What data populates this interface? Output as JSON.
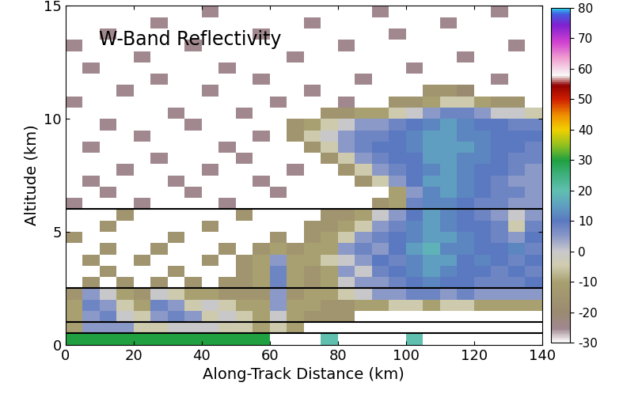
{
  "chart_data": {
    "type": "heatmap",
    "annotation": "W-Band Reflectivity",
    "x_label": "Along-Track Distance (km)",
    "y_label": "Altitude (km)",
    "xlim": [
      0,
      140
    ],
    "ylim": [
      0,
      15
    ],
    "xticks": [
      0,
      20,
      40,
      60,
      80,
      100,
      120,
      140
    ],
    "yticks": [
      0,
      5,
      10,
      15
    ],
    "reference_lines": [
      0.5,
      1,
      2.5,
      6
    ],
    "color_range": [
      -30,
      80
    ],
    "color_ticks": [
      -30,
      -20,
      -10,
      0,
      10,
      20,
      30,
      40,
      50,
      60,
      70,
      80
    ],
    "x_edges": [
      0,
      5,
      10,
      15,
      20,
      25,
      30,
      35,
      40,
      45,
      50,
      55,
      60,
      65,
      70,
      75,
      80,
      85,
      90,
      95,
      100,
      105,
      110,
      115,
      120,
      125,
      130,
      135,
      140
    ],
    "y_edges": [
      0,
      0.5,
      1,
      1.5,
      2,
      2.5,
      3,
      3.5,
      4,
      4.5,
      5,
      5.5,
      6,
      6.5,
      7,
      7.5,
      8,
      8.5,
      9,
      9.5,
      10,
      10.5,
      11,
      11.5,
      12,
      12.5,
      13,
      13.5,
      14,
      14.5,
      15
    ],
    "cells": [
      [
        30,
        30,
        30,
        30,
        30,
        30,
        30,
        30,
        30,
        30,
        30,
        30,
        null,
        null,
        null,
        20,
        null,
        null,
        null,
        null,
        20,
        null,
        null,
        null,
        null,
        null,
        null,
        null
      ],
      [
        -10,
        5,
        5,
        5,
        -5,
        -5,
        0,
        0,
        0,
        -5,
        -5,
        -10,
        -5,
        -10,
        null,
        null,
        null,
        null,
        null,
        null,
        null,
        null,
        null,
        null,
        null,
        null,
        null,
        null
      ],
      [
        -10,
        5,
        8,
        0,
        -5,
        5,
        8,
        5,
        -5,
        0,
        -5,
        -10,
        0,
        -10,
        -15,
        -15,
        -15,
        null,
        null,
        null,
        null,
        null,
        null,
        null,
        null,
        null,
        null,
        null
      ],
      [
        -10,
        8,
        5,
        -5,
        -10,
        8,
        5,
        -5,
        0,
        -5,
        -10,
        -10,
        5,
        -10,
        -10,
        -15,
        -15,
        -10,
        -10,
        -5,
        -5,
        -10,
        -5,
        -5,
        -10,
        -10,
        -10,
        -10
      ],
      [
        -15,
        5,
        0,
        -10,
        -15,
        0,
        -5,
        -10,
        -10,
        -15,
        -15,
        -15,
        5,
        -15,
        -10,
        -10,
        -5,
        0,
        5,
        5,
        8,
        8,
        5,
        8,
        5,
        5,
        5,
        5
      ],
      [
        null,
        -15,
        null,
        -15,
        null,
        -15,
        null,
        -15,
        null,
        -15,
        -15,
        -10,
        8,
        -10,
        -15,
        -10,
        0,
        5,
        5,
        8,
        10,
        12,
        10,
        10,
        8,
        8,
        8,
        10
      ],
      [
        null,
        null,
        -15,
        null,
        null,
        null,
        -15,
        null,
        null,
        null,
        -15,
        -10,
        8,
        -10,
        -15,
        -10,
        5,
        0,
        8,
        10,
        12,
        15,
        12,
        10,
        10,
        8,
        10,
        8
      ],
      [
        null,
        -15,
        null,
        null,
        -15,
        null,
        null,
        null,
        -15,
        null,
        -15,
        -10,
        5,
        -10,
        -10,
        -5,
        0,
        5,
        10,
        8,
        12,
        15,
        15,
        10,
        12,
        10,
        8,
        10
      ],
      [
        null,
        null,
        -15,
        null,
        null,
        -15,
        null,
        null,
        null,
        -15,
        null,
        -15,
        -10,
        -15,
        -10,
        -10,
        5,
        8,
        5,
        10,
        15,
        18,
        12,
        12,
        10,
        10,
        12,
        8
      ],
      [
        -15,
        null,
        null,
        null,
        null,
        null,
        -15,
        null,
        null,
        null,
        null,
        null,
        -15,
        null,
        -15,
        -10,
        -5,
        5,
        8,
        10,
        12,
        15,
        15,
        12,
        10,
        8,
        5,
        10
      ],
      [
        null,
        null,
        -15,
        null,
        null,
        null,
        null,
        null,
        -15,
        null,
        null,
        null,
        null,
        null,
        -15,
        -15,
        -10,
        -5,
        5,
        8,
        12,
        15,
        12,
        10,
        10,
        8,
        -5,
        8
      ],
      [
        null,
        null,
        null,
        -15,
        null,
        null,
        null,
        null,
        null,
        null,
        -15,
        null,
        null,
        null,
        null,
        -15,
        -15,
        -10,
        0,
        5,
        10,
        15,
        12,
        10,
        8,
        5,
        0,
        5
      ],
      [
        -25,
        null,
        null,
        null,
        -25,
        null,
        null,
        null,
        null,
        -25,
        null,
        null,
        null,
        null,
        null,
        null,
        null,
        null,
        -15,
        -10,
        8,
        12,
        12,
        10,
        8,
        8,
        5,
        5
      ],
      [
        null,
        null,
        -25,
        null,
        null,
        null,
        null,
        -25,
        null,
        null,
        null,
        null,
        -25,
        null,
        null,
        null,
        null,
        null,
        null,
        -10,
        5,
        12,
        15,
        12,
        10,
        8,
        8,
        5
      ],
      [
        null,
        -25,
        null,
        null,
        null,
        null,
        -25,
        null,
        null,
        null,
        null,
        -25,
        null,
        null,
        null,
        null,
        null,
        -15,
        -5,
        5,
        10,
        15,
        15,
        12,
        10,
        8,
        5,
        5
      ],
      [
        null,
        null,
        null,
        -25,
        null,
        null,
        null,
        null,
        -25,
        null,
        null,
        null,
        null,
        -25,
        null,
        null,
        -15,
        -5,
        5,
        8,
        10,
        12,
        15,
        12,
        10,
        10,
        8,
        5
      ],
      [
        null,
        null,
        null,
        null,
        null,
        -25,
        null,
        null,
        null,
        null,
        -25,
        null,
        null,
        null,
        null,
        -15,
        -5,
        5,
        8,
        10,
        10,
        15,
        15,
        12,
        12,
        10,
        8,
        8
      ],
      [
        null,
        -25,
        null,
        null,
        null,
        null,
        null,
        null,
        null,
        -25,
        null,
        null,
        null,
        null,
        -15,
        -5,
        5,
        8,
        10,
        10,
        12,
        15,
        15,
        15,
        12,
        10,
        10,
        8
      ],
      [
        null,
        null,
        null,
        null,
        -25,
        null,
        null,
        null,
        null,
        null,
        null,
        -25,
        null,
        -15,
        -5,
        0,
        5,
        8,
        8,
        10,
        12,
        15,
        15,
        12,
        12,
        10,
        10,
        10
      ],
      [
        null,
        null,
        -25,
        null,
        null,
        null,
        null,
        -25,
        null,
        null,
        null,
        null,
        null,
        -15,
        -10,
        -5,
        0,
        5,
        5,
        8,
        10,
        12,
        15,
        12,
        10,
        10,
        8,
        8
      ],
      [
        null,
        null,
        null,
        null,
        null,
        null,
        -25,
        null,
        null,
        null,
        -25,
        null,
        null,
        null,
        null,
        -15,
        -15,
        -10,
        -10,
        -5,
        0,
        5,
        8,
        8,
        5,
        0,
        0,
        -5
      ],
      [
        -25,
        null,
        null,
        null,
        null,
        null,
        null,
        null,
        null,
        null,
        null,
        null,
        -25,
        null,
        null,
        null,
        -25,
        null,
        null,
        -15,
        -15,
        -10,
        -5,
        -5,
        -10,
        -15,
        -15,
        null
      ],
      [
        null,
        null,
        null,
        -25,
        null,
        null,
        null,
        null,
        -25,
        null,
        null,
        null,
        null,
        null,
        -25,
        null,
        null,
        null,
        null,
        null,
        null,
        -15,
        -15,
        -20,
        null,
        null,
        null,
        null
      ],
      [
        null,
        null,
        null,
        null,
        null,
        -25,
        null,
        null,
        null,
        null,
        null,
        -25,
        null,
        null,
        null,
        null,
        null,
        -25,
        null,
        null,
        null,
        null,
        null,
        null,
        null,
        -25,
        null,
        null
      ],
      [
        null,
        -25,
        null,
        null,
        null,
        null,
        null,
        null,
        null,
        -25,
        null,
        null,
        null,
        null,
        null,
        null,
        null,
        null,
        null,
        null,
        -25,
        null,
        null,
        null,
        null,
        null,
        null,
        null
      ],
      [
        null,
        null,
        null,
        null,
        -25,
        null,
        null,
        null,
        null,
        null,
        null,
        null,
        null,
        -25,
        null,
        null,
        null,
        null,
        null,
        null,
        null,
        null,
        null,
        -25,
        null,
        null,
        null,
        null
      ],
      [
        -25,
        null,
        null,
        null,
        null,
        null,
        null,
        -25,
        null,
        null,
        null,
        null,
        null,
        null,
        null,
        null,
        -25,
        null,
        null,
        null,
        null,
        null,
        null,
        null,
        null,
        null,
        -25,
        null
      ],
      [
        null,
        null,
        -25,
        null,
        null,
        null,
        null,
        null,
        null,
        null,
        null,
        -25,
        null,
        null,
        null,
        null,
        null,
        null,
        null,
        -25,
        null,
        null,
        null,
        null,
        null,
        null,
        null,
        null
      ],
      [
        null,
        null,
        null,
        null,
        null,
        -25,
        null,
        null,
        null,
        null,
        null,
        null,
        null,
        null,
        -25,
        null,
        null,
        null,
        null,
        null,
        null,
        null,
        -25,
        null,
        null,
        null,
        null,
        null
      ],
      [
        null,
        null,
        null,
        null,
        null,
        null,
        null,
        null,
        -25,
        null,
        null,
        null,
        null,
        null,
        null,
        null,
        null,
        null,
        -25,
        null,
        null,
        null,
        null,
        null,
        null,
        -25,
        null,
        null
      ]
    ]
  }
}
